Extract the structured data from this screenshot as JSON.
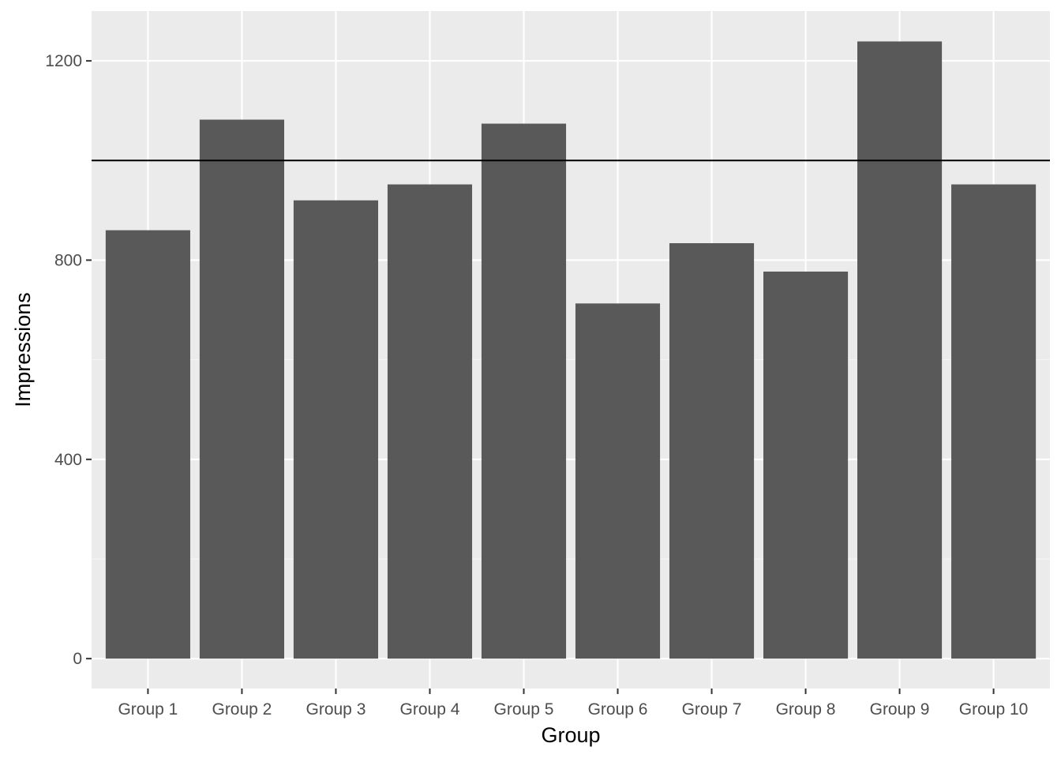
{
  "chart_data": {
    "type": "bar",
    "title": "",
    "xlabel": "Group",
    "ylabel": "Impressions",
    "categories": [
      "Group 1",
      "Group 2",
      "Group 3",
      "Group 4",
      "Group 5",
      "Group 6",
      "Group 7",
      "Group 8",
      "Group 9",
      "Group 10"
    ],
    "values": [
      860,
      1082,
      920,
      952,
      1074,
      713,
      834,
      777,
      1239,
      952
    ],
    "ylim": [
      -60,
      1300
    ],
    "yticks": [
      0,
      400,
      800,
      1200
    ],
    "yticks_minor": [
      200,
      600,
      1000
    ],
    "yticks_labels": [
      "0",
      "400",
      "800",
      "1200"
    ],
    "reference_line": {
      "y": 1000,
      "color": "#000000"
    },
    "grid": true,
    "legend": "none",
    "colors": {
      "panel_background": "#ebebeb",
      "grid_major": "#ffffff",
      "grid_minor": "#f5f5f5",
      "bar_fill": "#595959",
      "tick": "#333333"
    }
  }
}
